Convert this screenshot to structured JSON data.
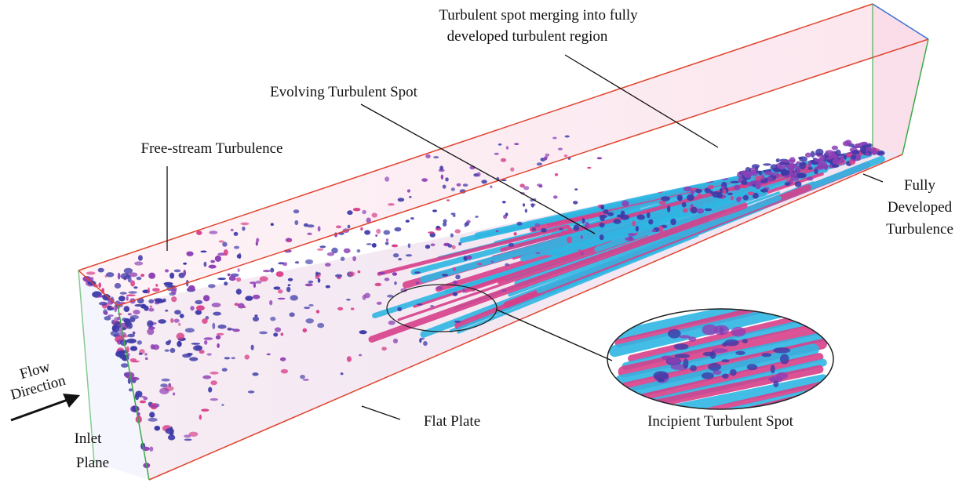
{
  "labels": {
    "merging_line1": "Turbulent spot merging into fully",
    "merging_line2": "developed turbulent region",
    "evolving": "Evolving Turbulent Spot",
    "free_stream": "Free-stream Turbulence",
    "fully_line1": "Fully",
    "fully_line2": "Developed",
    "fully_line3": "Turbulence",
    "flow_line1": "Flow",
    "flow_line2": "Direction",
    "inlet_line1": "Inlet",
    "inlet_line2": "Plane",
    "flat_plate": "Flat Plate",
    "incipient": "Incipient Turbulent Spot"
  },
  "colors": {
    "box_edge": "#e0442e",
    "outlet_edge": "#3b6fd4",
    "side_edge": "#3aa845",
    "streak_cyan": "#2fb6e3",
    "streak_magenta": "#d8408a",
    "blob_navy": "#3d3aa8",
    "blob_purple": "#8e3fb5",
    "background_tint": "#fbe7ef"
  }
}
